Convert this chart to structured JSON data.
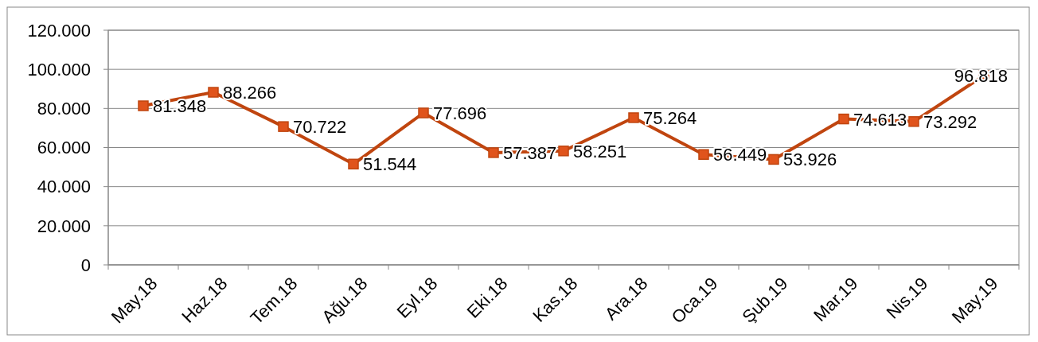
{
  "chart_data": {
    "type": "line",
    "categories": [
      "May.18",
      "Haz.18",
      "Tem.18",
      "Ağu.18",
      "Eyl.18",
      "Eki.18",
      "Kas.18",
      "Ara.18",
      "Oca.19",
      "Şub.19",
      "Mar.19",
      "Nis.19",
      "May.19"
    ],
    "series": [
      {
        "color": "#c0450f",
        "values": [
          81348,
          88266,
          70722,
          51544,
          77696,
          57387,
          58251,
          75264,
          56449,
          53926,
          74613,
          73292,
          96818
        ],
        "value_labels": [
          "81.348",
          "88.266",
          "70.722",
          "51.544",
          "77.696",
          "57.387",
          "58.251",
          "75.264",
          "56.449",
          "53.926",
          "74.613",
          "73.292",
          "96.818"
        ]
      }
    ],
    "ylim": [
      0,
      120000
    ],
    "yticks": [
      {
        "value": 0,
        "label": "0"
      },
      {
        "value": 20000,
        "label": "20.000"
      },
      {
        "value": 40000,
        "label": "40.000"
      },
      {
        "value": 60000,
        "label": "60.000"
      },
      {
        "value": 80000,
        "label": "80.000"
      },
      {
        "value": 100000,
        "label": "100.000"
      },
      {
        "value": 120000,
        "label": "120.000"
      }
    ],
    "grid": "y",
    "marker": "square",
    "line_style": "solid"
  }
}
